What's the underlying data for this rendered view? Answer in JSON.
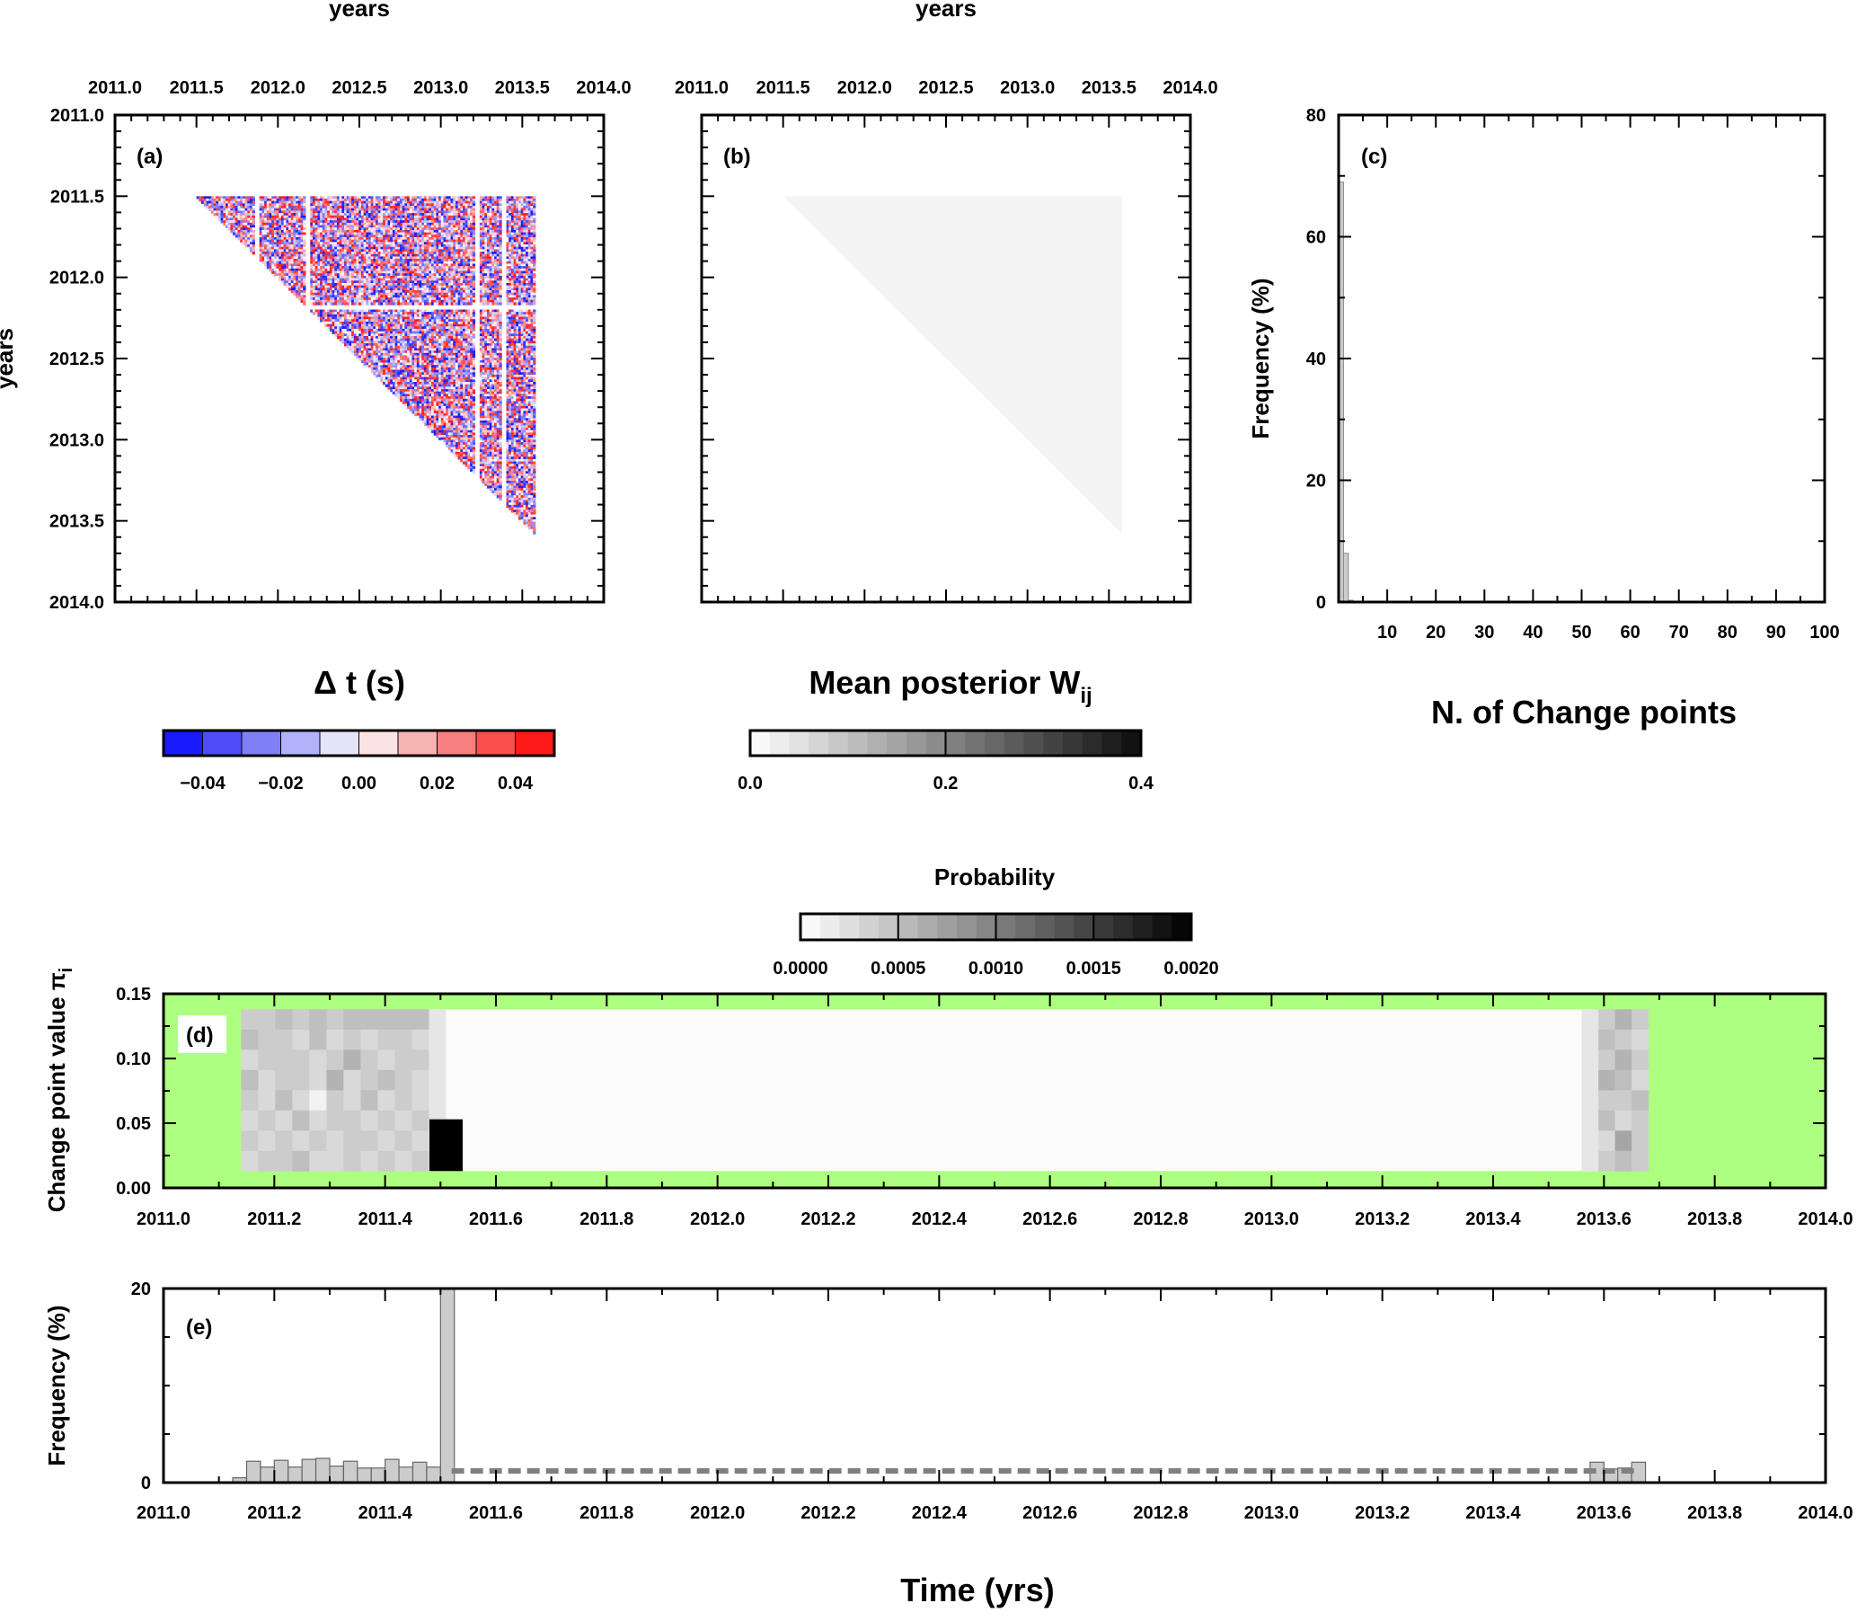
{
  "chart_data": [
    {
      "id": "a",
      "type": "heatmap",
      "panel_label": "(a)",
      "top_title": "years",
      "left_title": "years",
      "x_ticks": [
        "2011.0",
        "2011.5",
        "2012.0",
        "2012.5",
        "2013.0",
        "2013.5",
        "2014.0"
      ],
      "y_ticks": [
        "2011.0",
        "2011.5",
        "2012.0",
        "2012.5",
        "2013.0",
        "2013.5",
        "2014.0"
      ],
      "xlim": [
        2011.0,
        2014.0
      ],
      "ylim": [
        2011.0,
        2014.0
      ],
      "data_extent": [
        2011.5,
        2013.58
      ],
      "gap_rows": [
        2012.17,
        2012.18
      ],
      "gap_cols": [
        2011.86,
        2012.18,
        2013.22,
        2013.38
      ],
      "colorbar": {
        "title": "Δ t (s)",
        "range": [
          -0.05,
          0.05
        ],
        "tick_labels": [
          "−0.04",
          "−0.02",
          "0.00",
          "0.02",
          "0.04"
        ],
        "tick_values": [
          -0.04,
          -0.02,
          0.0,
          0.02,
          0.04
        ],
        "colors": [
          "#1a1aff",
          "#4d4dfa",
          "#7f7ff7",
          "#b2b2fa",
          "#e3e3fa",
          "#fbe3e3",
          "#f7b2b2",
          "#f77f7f",
          "#fa4d4d",
          "#ff1a1a"
        ]
      }
    },
    {
      "id": "b",
      "type": "heatmap",
      "panel_label": "(b)",
      "top_title": "years",
      "x_ticks": [
        "2011.0",
        "2011.5",
        "2012.0",
        "2012.5",
        "2013.0",
        "2013.5",
        "2014.0"
      ],
      "xlim": [
        2011.0,
        2014.0
      ],
      "ylim": [
        2011.0,
        2014.0
      ],
      "data_extent": [
        2011.5,
        2013.58
      ],
      "fill_color": "#f4f4f4",
      "colorbar": {
        "title": "Mean posterior W",
        "title_subscript": "ij",
        "range": [
          0.0,
          0.4
        ],
        "tick_labels": [
          "0.0",
          "0.2",
          "0.4"
        ],
        "tick_values": [
          0.0,
          0.2,
          0.4
        ]
      }
    },
    {
      "id": "c",
      "type": "bar",
      "panel_label": "(c)",
      "xlabel": "N. of Change points",
      "ylabel": "Frequency (%)",
      "xlim": [
        0,
        100
      ],
      "ylim": [
        0,
        80
      ],
      "x_ticks": [
        "10",
        "20",
        "30",
        "40",
        "50",
        "60",
        "70",
        "80",
        "90",
        "100"
      ],
      "x_tick_values": [
        10,
        20,
        30,
        40,
        50,
        60,
        70,
        80,
        90,
        100
      ],
      "y_ticks": [
        "0",
        "20",
        "40",
        "60",
        "80"
      ],
      "y_tick_values": [
        0,
        20,
        40,
        60,
        80
      ],
      "bins": [
        1,
        2,
        3,
        4
      ],
      "values": [
        69,
        8,
        0.3,
        0.1
      ],
      "bar_color": "#cccccc"
    },
    {
      "id": "d",
      "type": "heatmap",
      "panel_label": "(d)",
      "ylabel": "Change point value π",
      "ylabel_subscript": "i",
      "xlim": [
        2011.0,
        2014.0
      ],
      "ylim": [
        0.0,
        0.15
      ],
      "x_ticks": [
        "2011.0",
        "2011.2",
        "2011.4",
        "2011.6",
        "2011.8",
        "2012.0",
        "2012.2",
        "2012.4",
        "2012.6",
        "2012.8",
        "2013.0",
        "2013.2",
        "2013.4",
        "2013.6",
        "2013.8",
        "2014.0"
      ],
      "y_ticks": [
        "0.00",
        "0.05",
        "0.10",
        "0.15"
      ],
      "y_tick_values": [
        0.0,
        0.05,
        0.1,
        0.15
      ],
      "background_color": "#adff7f",
      "colorbar": {
        "title": "Probability",
        "range": [
          0.0,
          0.002
        ],
        "tick_labels": [
          "0.0000",
          "0.0005",
          "0.0010",
          "0.0015",
          "0.0020"
        ],
        "tick_values": [
          0.0,
          0.0005,
          0.001,
          0.0015,
          0.002
        ]
      },
      "grid_blocks": [
        {
          "x0": 2011.14,
          "x1": 2011.51,
          "y0": 0.013,
          "y1": 0.138,
          "rows": 8,
          "cols": 12,
          "probabilities": [
            [
              0.0004,
              0.0004,
              0.0005,
              0.0004,
              0.0005,
              0.0004,
              0.0005,
              0.0005,
              0.0005,
              0.0005,
              0.0005,
              0.0002
            ],
            [
              0.0005,
              0.0004,
              0.0004,
              0.0003,
              0.0005,
              0.0003,
              0.0004,
              0.0003,
              0.0004,
              0.0004,
              0.0003,
              0.0002
            ],
            [
              0.0003,
              0.0004,
              0.0004,
              0.0004,
              0.0003,
              0.0004,
              0.0006,
              0.0004,
              0.0003,
              0.0004,
              0.0004,
              0.0002
            ],
            [
              0.0005,
              0.0003,
              0.0004,
              0.0004,
              0.0003,
              0.0006,
              0.0003,
              0.0004,
              0.0005,
              0.0004,
              0.0003,
              0.0002
            ],
            [
              0.0004,
              0.0003,
              0.0005,
              0.0003,
              0.0001,
              0.0004,
              0.0003,
              0.0005,
              0.0003,
              0.0004,
              0.0003,
              0.0002
            ],
            [
              0.0003,
              0.0004,
              0.0003,
              0.0005,
              0.0003,
              0.0004,
              0.0004,
              0.0003,
              0.0004,
              0.0003,
              0.0004,
              0.0002
            ],
            [
              0.0004,
              0.0003,
              0.0004,
              0.0003,
              0.0004,
              0.0003,
              0.0004,
              0.0004,
              0.0003,
              0.0004,
              0.0003,
              0.0002
            ],
            [
              0.0003,
              0.0004,
              0.0004,
              0.0005,
              0.0003,
              0.0003,
              0.0004,
              0.0003,
              0.0004,
              0.0003,
              0.0004,
              0.0002
            ]
          ]
        },
        {
          "x0": 2011.51,
          "x1": 2013.56,
          "y0": 0.013,
          "y1": 0.138,
          "value": 3e-05
        },
        {
          "x0": 2011.48,
          "x1": 2011.54,
          "y0": 0.013,
          "y1": 0.053,
          "value": 0.002
        },
        {
          "x0": 2013.56,
          "x1": 2013.68,
          "y0": 0.013,
          "y1": 0.138,
          "rows": 8,
          "cols": 4,
          "probabilities": [
            [
              0.0002,
              0.0004,
              0.0006,
              0.0004
            ],
            [
              0.0002,
              0.0005,
              0.0004,
              0.0003
            ],
            [
              0.0002,
              0.0004,
              0.0006,
              0.0004
            ],
            [
              0.0002,
              0.0006,
              0.0005,
              0.0003
            ],
            [
              0.0002,
              0.0004,
              0.0004,
              0.0005
            ],
            [
              0.0002,
              0.0005,
              0.0003,
              0.0004
            ],
            [
              0.0002,
              0.0003,
              0.0007,
              0.0004
            ],
            [
              0.0002,
              0.0004,
              0.0005,
              0.0004
            ]
          ]
        }
      ]
    },
    {
      "id": "e",
      "type": "bar",
      "panel_label": "(e)",
      "ylabel": "Frequency (%)",
      "xlabel": "Time (yrs)",
      "xlim": [
        2011.0,
        2014.0
      ],
      "ylim": [
        0,
        20
      ],
      "x_ticks": [
        "2011.0",
        "2011.2",
        "2011.4",
        "2011.6",
        "2011.8",
        "2012.0",
        "2012.2",
        "2012.4",
        "2012.6",
        "2012.8",
        "2013.0",
        "2013.2",
        "2013.4",
        "2013.6",
        "2013.8",
        "2014.0"
      ],
      "y_ticks": [
        "0",
        "20"
      ],
      "y_tick_values": [
        0,
        20
      ],
      "bin_width": 0.025,
      "bin_starts": [
        2011.125,
        2011.15,
        2011.175,
        2011.2,
        2011.225,
        2011.25,
        2011.275,
        2011.3,
        2011.325,
        2011.35,
        2011.375,
        2011.4,
        2011.425,
        2011.45,
        2011.475,
        2011.5,
        2013.575,
        2013.6,
        2013.625,
        2013.65
      ],
      "values": [
        0.5,
        2.2,
        1.6,
        2.3,
        1.6,
        2.4,
        2.5,
        1.7,
        2.2,
        1.5,
        1.5,
        2.4,
        1.6,
        2.1,
        1.6,
        20,
        2.1,
        1.4,
        1.5,
        2.1
      ],
      "dashed_level": {
        "from": 2011.52,
        "to": 2013.66,
        "value": 1.2,
        "color": "#808080"
      },
      "bar_color": "#cccccc"
    }
  ]
}
